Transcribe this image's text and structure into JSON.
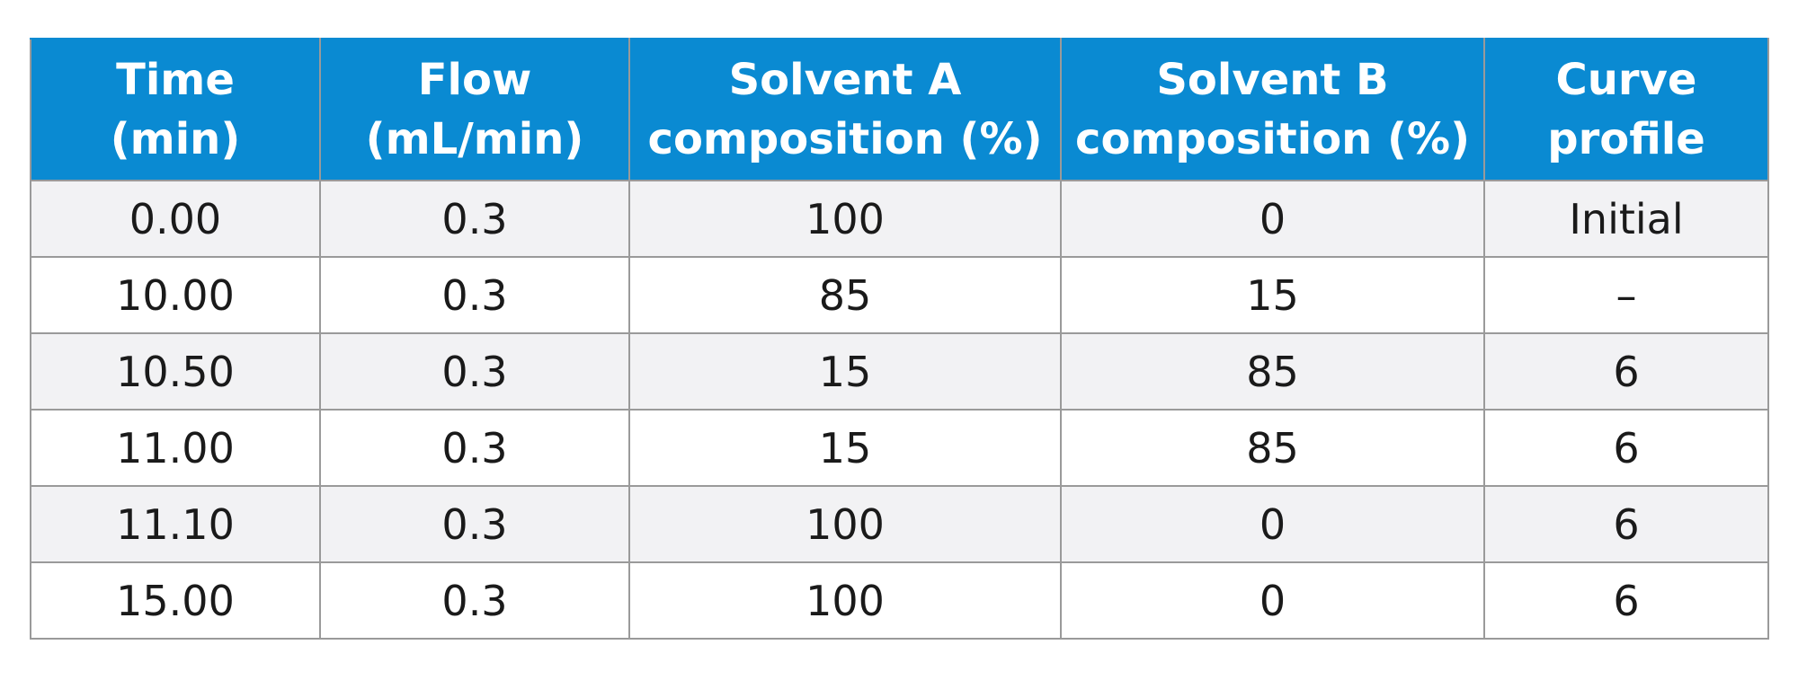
{
  "table": {
    "header": [
      [
        "Time",
        "(min)"
      ],
      [
        "Flow",
        "(mL/min)"
      ],
      [
        "Solvent A",
        "composition (%)"
      ],
      [
        "Solvent B",
        "composition (%)"
      ],
      [
        "Curve",
        "profile"
      ]
    ],
    "rows": [
      [
        "0.00",
        "0.3",
        "100",
        "0",
        "Initial"
      ],
      [
        "10.00",
        "0.3",
        "85",
        "15",
        "–"
      ],
      [
        "10.50",
        "0.3",
        "15",
        "85",
        "6"
      ],
      [
        "11.00",
        "0.3",
        "15",
        "85",
        "6"
      ],
      [
        "11.10",
        "0.3",
        "100",
        "0",
        "6"
      ],
      [
        "15.00",
        "0.3",
        "100",
        "0",
        "6"
      ]
    ]
  }
}
